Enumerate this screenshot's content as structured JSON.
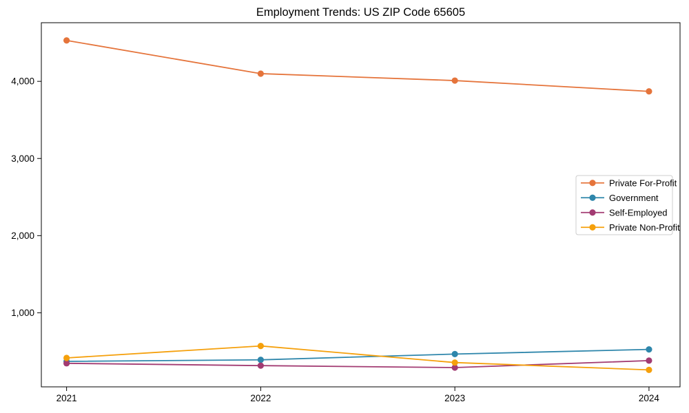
{
  "page": {
    "background": "#ffffff"
  },
  "chart_data": {
    "type": "line",
    "title": "Employment Trends: US ZIP Code 65605",
    "x": [
      2021,
      2022,
      2023,
      2024
    ],
    "x_tick_labels": [
      "2021",
      "2022",
      "2023",
      "2024"
    ],
    "y_ticks": [
      1000,
      2000,
      3000,
      4000
    ],
    "y_tick_labels": [
      "1,000",
      "2,000",
      "3,000",
      "4,000"
    ],
    "xlim": [
      2020.87,
      2024.16
    ],
    "ylim": [
      40,
      4760
    ],
    "grid": false,
    "marker": "o",
    "axis_color": "#000000",
    "legend": {
      "position": "center right",
      "frame_color": "#cccccc",
      "background": "#ffffff"
    },
    "series": [
      {
        "name": "Private For-Profit",
        "color": "#e5743b",
        "values": [
          4530,
          4100,
          4010,
          3870
        ]
      },
      {
        "name": "Government",
        "color": "#2e86ab",
        "values": [
          370,
          390,
          465,
          525
        ]
      },
      {
        "name": "Self-Employed",
        "color": "#a23b72",
        "values": [
          345,
          315,
          290,
          380
        ]
      },
      {
        "name": "Private Non-Profit",
        "color": "#f5a00c",
        "values": [
          415,
          570,
          355,
          260
        ]
      }
    ]
  }
}
